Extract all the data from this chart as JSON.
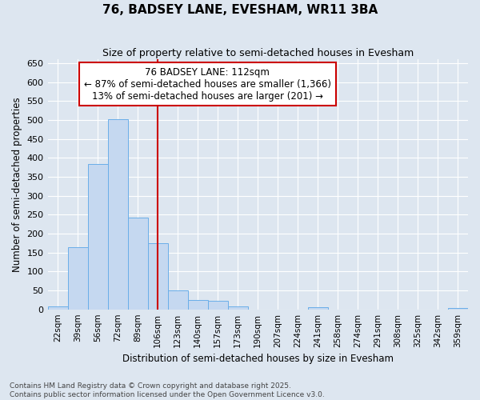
{
  "title": "76, BADSEY LANE, EVESHAM, WR11 3BA",
  "subtitle": "Size of property relative to semi-detached houses in Evesham",
  "xlabel": "Distribution of semi-detached houses by size in Evesham",
  "ylabel": "Number of semi-detached properties",
  "categories": [
    "22sqm",
    "39sqm",
    "56sqm",
    "72sqm",
    "89sqm",
    "106sqm",
    "123sqm",
    "140sqm",
    "157sqm",
    "173sqm",
    "190sqm",
    "207sqm",
    "224sqm",
    "241sqm",
    "258sqm",
    "274sqm",
    "291sqm",
    "308sqm",
    "325sqm",
    "342sqm",
    "359sqm"
  ],
  "values": [
    8,
    163,
    383,
    503,
    242,
    175,
    50,
    24,
    22,
    8,
    0,
    0,
    0,
    5,
    0,
    0,
    0,
    0,
    0,
    0,
    3
  ],
  "bar_color": "#c5d8f0",
  "bar_edge_color": "#6aaee8",
  "annotation_title": "76 BADSEY LANE: 112sqm",
  "annotation_line1": "← 87% of semi-detached houses are smaller (1,366)",
  "annotation_line2": "13% of semi-detached houses are larger (201) →",
  "annotation_box_color": "#ffffff",
  "annotation_box_edge": "#cc0000",
  "vline_color": "#cc0000",
  "vline_x": 5.0,
  "background_color": "#dde6f0",
  "grid_color": "#ffffff",
  "footer1": "Contains HM Land Registry data © Crown copyright and database right 2025.",
  "footer2": "Contains public sector information licensed under the Open Government Licence v3.0.",
  "ylim": [
    0,
    660
  ],
  "yticks": [
    0,
    50,
    100,
    150,
    200,
    250,
    300,
    350,
    400,
    450,
    500,
    550,
    600,
    650
  ]
}
